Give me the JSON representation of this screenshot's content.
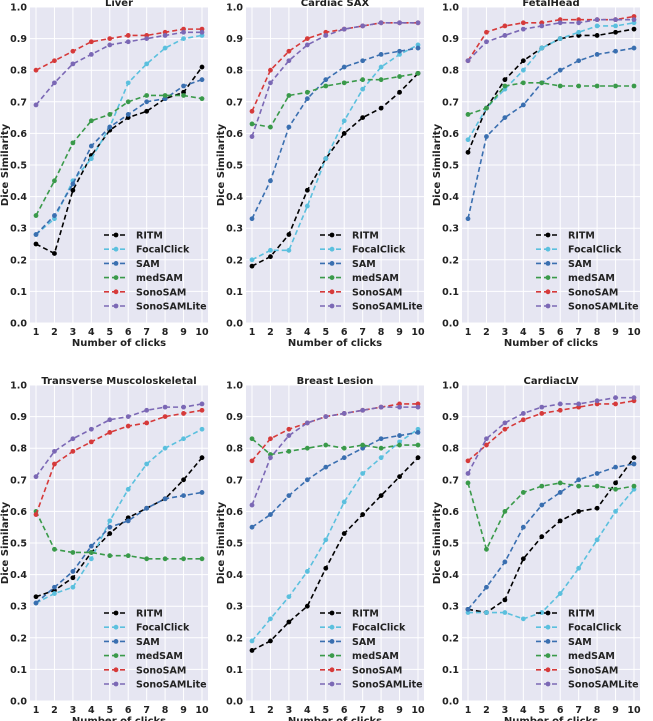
{
  "chart_data": [
    {
      "type": "line",
      "title": "Liver",
      "xlabel": "Number of clicks",
      "ylabel": "Dice Similarity",
      "x": [
        1,
        2,
        3,
        4,
        5,
        6,
        7,
        8,
        9,
        10
      ],
      "ylim": [
        0,
        1.0
      ],
      "yticks": [
        "0.0",
        "0.1",
        "0.2",
        "0.3",
        "0.4",
        "0.5",
        "0.6",
        "0.7",
        "0.8",
        "0.9",
        "1.0"
      ],
      "legend": "lower-right",
      "series": [
        {
          "name": "RITM",
          "values": [
            0.25,
            0.22,
            0.42,
            0.53,
            0.61,
            0.65,
            0.67,
            0.71,
            0.73,
            0.81
          ]
        },
        {
          "name": "FocalClick",
          "values": [
            0.28,
            0.33,
            0.45,
            0.52,
            0.62,
            0.76,
            0.82,
            0.87,
            0.9,
            0.91
          ]
        },
        {
          "name": "SAM",
          "values": [
            0.28,
            0.34,
            0.44,
            0.56,
            0.62,
            0.66,
            0.7,
            0.71,
            0.75,
            0.77
          ]
        },
        {
          "name": "medSAM",
          "values": [
            0.34,
            0.45,
            0.57,
            0.64,
            0.66,
            0.7,
            0.72,
            0.72,
            0.72,
            0.71
          ]
        },
        {
          "name": "SonoSAM",
          "values": [
            0.8,
            0.83,
            0.86,
            0.89,
            0.9,
            0.91,
            0.91,
            0.92,
            0.93,
            0.93
          ]
        },
        {
          "name": "SonoSAMLite",
          "values": [
            0.69,
            0.76,
            0.82,
            0.85,
            0.88,
            0.89,
            0.9,
            0.91,
            0.92,
            0.92
          ]
        }
      ]
    },
    {
      "type": "line",
      "title": "Cardiac SAX",
      "xlabel": "Number of clicks",
      "ylabel": "Dice Similarity",
      "x": [
        1,
        2,
        3,
        4,
        5,
        6,
        7,
        8,
        9,
        10
      ],
      "ylim": [
        0,
        1.0
      ],
      "yticks": [
        "0.0",
        "0.1",
        "0.2",
        "0.3",
        "0.4",
        "0.5",
        "0.6",
        "0.7",
        "0.8",
        "0.9",
        "1.0"
      ],
      "legend": "lower-right",
      "series": [
        {
          "name": "RITM",
          "values": [
            0.18,
            0.21,
            0.28,
            0.42,
            0.52,
            0.6,
            0.65,
            0.68,
            0.73,
            0.79
          ]
        },
        {
          "name": "FocalClick",
          "values": [
            0.2,
            0.23,
            0.23,
            0.37,
            0.52,
            0.64,
            0.74,
            0.81,
            0.85,
            0.88
          ]
        },
        {
          "name": "SAM",
          "values": [
            0.33,
            0.45,
            0.62,
            0.71,
            0.77,
            0.81,
            0.83,
            0.85,
            0.86,
            0.87
          ]
        },
        {
          "name": "medSAM",
          "values": [
            0.63,
            0.62,
            0.72,
            0.73,
            0.75,
            0.76,
            0.77,
            0.77,
            0.78,
            0.79
          ]
        },
        {
          "name": "SonoSAM",
          "values": [
            0.67,
            0.8,
            0.86,
            0.9,
            0.92,
            0.93,
            0.94,
            0.95,
            0.95,
            0.95
          ]
        },
        {
          "name": "SonoSAMLite",
          "values": [
            0.59,
            0.76,
            0.83,
            0.88,
            0.91,
            0.93,
            0.94,
            0.95,
            0.95,
            0.95
          ]
        }
      ]
    },
    {
      "type": "line",
      "title": "FetalHead",
      "xlabel": "Number of clicks",
      "ylabel": "Dice Similarity",
      "x": [
        1,
        2,
        3,
        4,
        5,
        6,
        7,
        8,
        9,
        10
      ],
      "ylim": [
        0,
        1.0
      ],
      "yticks": [
        "0.0",
        "0.1",
        "0.2",
        "0.3",
        "0.4",
        "0.5",
        "0.6",
        "0.7",
        "0.8",
        "0.9",
        "1.0"
      ],
      "legend": "lower-right",
      "series": [
        {
          "name": "RITM",
          "values": [
            0.54,
            0.68,
            0.77,
            0.83,
            0.87,
            0.9,
            0.91,
            0.91,
            0.92,
            0.93
          ]
        },
        {
          "name": "FocalClick",
          "values": [
            0.58,
            0.68,
            0.74,
            0.8,
            0.87,
            0.9,
            0.92,
            0.94,
            0.94,
            0.95
          ]
        },
        {
          "name": "SAM",
          "values": [
            0.33,
            0.59,
            0.65,
            0.69,
            0.76,
            0.8,
            0.83,
            0.85,
            0.86,
            0.87
          ]
        },
        {
          "name": "medSAM",
          "values": [
            0.66,
            0.68,
            0.75,
            0.76,
            0.76,
            0.75,
            0.75,
            0.75,
            0.75,
            0.75
          ]
        },
        {
          "name": "SonoSAM",
          "values": [
            0.83,
            0.92,
            0.94,
            0.95,
            0.95,
            0.96,
            0.96,
            0.96,
            0.96,
            0.97
          ]
        },
        {
          "name": "SonoSAMLite",
          "values": [
            0.83,
            0.89,
            0.91,
            0.93,
            0.94,
            0.95,
            0.95,
            0.96,
            0.96,
            0.96
          ]
        }
      ]
    },
    {
      "type": "line",
      "title": "Transverse Muscoloskeletal",
      "xlabel": "Number of clicks",
      "ylabel": "Dice Similarity",
      "x": [
        1,
        2,
        3,
        4,
        5,
        6,
        7,
        8,
        9,
        10
      ],
      "ylim": [
        0,
        1.0
      ],
      "yticks": [
        "0.0",
        "0.1",
        "0.2",
        "0.3",
        "0.4",
        "0.5",
        "0.6",
        "0.7",
        "0.8",
        "0.9",
        "1.0"
      ],
      "legend": "lower-right",
      "series": [
        {
          "name": "RITM",
          "values": [
            0.33,
            0.35,
            0.39,
            0.47,
            0.53,
            0.58,
            0.61,
            0.64,
            0.7,
            0.77
          ]
        },
        {
          "name": "FocalClick",
          "values": [
            0.31,
            0.34,
            0.36,
            0.45,
            0.57,
            0.67,
            0.75,
            0.8,
            0.83,
            0.86
          ]
        },
        {
          "name": "SAM",
          "values": [
            0.31,
            0.36,
            0.41,
            0.49,
            0.55,
            0.57,
            0.61,
            0.64,
            0.65,
            0.66
          ]
        },
        {
          "name": "medSAM",
          "values": [
            0.6,
            0.48,
            0.47,
            0.47,
            0.46,
            0.46,
            0.45,
            0.45,
            0.45,
            0.45
          ]
        },
        {
          "name": "SonoSAM",
          "values": [
            0.59,
            0.75,
            0.79,
            0.82,
            0.85,
            0.87,
            0.88,
            0.9,
            0.91,
            0.92
          ]
        },
        {
          "name": "SonoSAMLite",
          "values": [
            0.71,
            0.79,
            0.83,
            0.86,
            0.89,
            0.9,
            0.92,
            0.93,
            0.93,
            0.94
          ]
        }
      ]
    },
    {
      "type": "line",
      "title": "Breast Lesion",
      "xlabel": "Number of clicks",
      "ylabel": "Dice Similarity",
      "x": [
        1,
        2,
        3,
        4,
        5,
        6,
        7,
        8,
        9,
        10
      ],
      "ylim": [
        0,
        1.0
      ],
      "yticks": [
        "0.0",
        "0.1",
        "0.2",
        "0.3",
        "0.4",
        "0.5",
        "0.6",
        "0.7",
        "0.8",
        "0.9",
        "1.0"
      ],
      "legend": "lower-right",
      "series": [
        {
          "name": "RITM",
          "values": [
            0.16,
            0.19,
            0.25,
            0.3,
            0.42,
            0.53,
            0.59,
            0.65,
            0.71,
            0.77
          ]
        },
        {
          "name": "FocalClick",
          "values": [
            0.19,
            0.26,
            0.33,
            0.41,
            0.51,
            0.63,
            0.72,
            0.77,
            0.82,
            0.86
          ]
        },
        {
          "name": "SAM",
          "values": [
            0.55,
            0.59,
            0.65,
            0.7,
            0.74,
            0.77,
            0.8,
            0.83,
            0.84,
            0.85
          ]
        },
        {
          "name": "medSAM",
          "values": [
            0.83,
            0.78,
            0.79,
            0.8,
            0.81,
            0.8,
            0.81,
            0.8,
            0.81,
            0.81
          ]
        },
        {
          "name": "SonoSAM",
          "values": [
            0.76,
            0.83,
            0.86,
            0.88,
            0.9,
            0.91,
            0.92,
            0.93,
            0.94,
            0.94
          ]
        },
        {
          "name": "SonoSAMLite",
          "values": [
            0.62,
            0.77,
            0.84,
            0.88,
            0.9,
            0.91,
            0.92,
            0.93,
            0.93,
            0.93
          ]
        }
      ]
    },
    {
      "type": "line",
      "title": "CardiacLV",
      "xlabel": "Number of clicks",
      "ylabel": "Dice Similarity",
      "x": [
        1,
        2,
        3,
        4,
        5,
        6,
        7,
        8,
        9,
        10
      ],
      "ylim": [
        0,
        1.0
      ],
      "yticks": [
        "0.0",
        "0.1",
        "0.2",
        "0.3",
        "0.4",
        "0.5",
        "0.6",
        "0.7",
        "0.8",
        "0.9",
        "1.0"
      ],
      "legend": "lower-right",
      "series": [
        {
          "name": "RITM",
          "values": [
            0.29,
            0.28,
            0.32,
            0.45,
            0.52,
            0.57,
            0.6,
            0.61,
            0.69,
            0.77
          ]
        },
        {
          "name": "FocalClick",
          "values": [
            0.28,
            0.28,
            0.28,
            0.26,
            0.28,
            0.34,
            0.42,
            0.51,
            0.6,
            0.67
          ]
        },
        {
          "name": "SAM",
          "values": [
            0.29,
            0.36,
            0.44,
            0.55,
            0.62,
            0.66,
            0.7,
            0.72,
            0.74,
            0.75
          ]
        },
        {
          "name": "medSAM",
          "values": [
            0.69,
            0.48,
            0.6,
            0.66,
            0.68,
            0.69,
            0.68,
            0.68,
            0.67,
            0.68
          ]
        },
        {
          "name": "SonoSAM",
          "values": [
            0.76,
            0.81,
            0.86,
            0.89,
            0.91,
            0.92,
            0.93,
            0.94,
            0.94,
            0.95
          ]
        },
        {
          "name": "SonoSAMLite",
          "values": [
            0.72,
            0.83,
            0.88,
            0.91,
            0.93,
            0.94,
            0.94,
            0.95,
            0.96,
            0.96
          ]
        }
      ]
    }
  ],
  "colors": {
    "RITM": "#000000",
    "FocalClick": "#5bc0de",
    "SAM": "#3a6fb0",
    "medSAM": "#3a9a4a",
    "SonoSAM": "#d63a3a",
    "SonoSAMLite": "#7b68b5",
    "plot_bg": "#e6e6f2",
    "grid": "#ffffff"
  }
}
